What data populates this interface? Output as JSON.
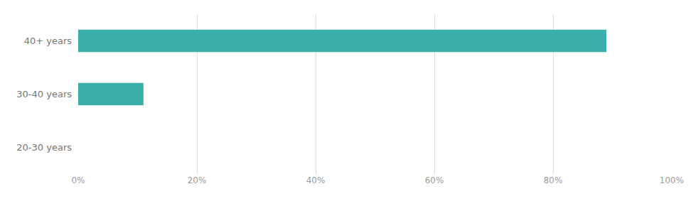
{
  "chart_data": {
    "type": "bar",
    "orientation": "horizontal",
    "categories": [
      "40+ years",
      "30-40 years",
      "20-30 years"
    ],
    "values": [
      89,
      11,
      0
    ],
    "color": "#3aafa9",
    "xlim": [
      0,
      100
    ],
    "xticks": [
      {
        "value": 0,
        "label": "0%"
      },
      {
        "value": 20,
        "label": "20%"
      },
      {
        "value": 40,
        "label": "40%"
      },
      {
        "value": 60,
        "label": "60%"
      },
      {
        "value": 80,
        "label": "80%"
      },
      {
        "value": 100,
        "label": "100%"
      }
    ],
    "grid": true
  }
}
